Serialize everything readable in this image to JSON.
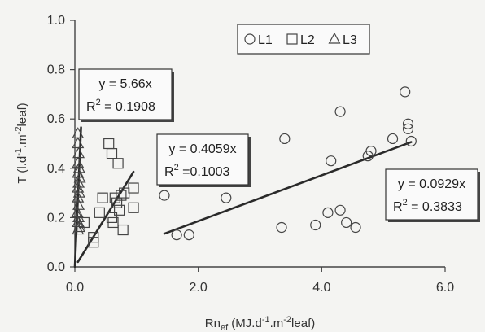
{
  "chart_data": {
    "type": "scatter",
    "xlim": [
      0,
      6
    ],
    "ylim": [
      0,
      1
    ],
    "x_ticks": [
      "0.0",
      "2.0",
      "4.0",
      "6.0"
    ],
    "y_ticks": [
      "0.0",
      "0.2",
      "0.4",
      "0.6",
      "0.8",
      "1.0"
    ],
    "xlabel": {
      "base": "Rn",
      "sub": "ef",
      "pre": " (MJ.d",
      "sup1": "-1",
      "mid": ".m",
      "sup2": "-2",
      "post": "leaf)"
    },
    "ylabel": {
      "pre": "T (l.d",
      "sup1": "-1",
      "mid": ".m",
      "sup2": "-2",
      "post": "leaf)"
    },
    "legend": [
      "L1",
      "L2",
      "L3"
    ],
    "grid": false,
    "series": [
      {
        "name": "L1",
        "marker": "circle",
        "points": [
          [
            1.45,
            0.29
          ],
          [
            1.65,
            0.13
          ],
          [
            1.85,
            0.13
          ],
          [
            2.45,
            0.28
          ],
          [
            3.35,
            0.16
          ],
          [
            3.4,
            0.52
          ],
          [
            3.9,
            0.17
          ],
          [
            4.1,
            0.22
          ],
          [
            4.15,
            0.43
          ],
          [
            4.3,
            0.63
          ],
          [
            4.3,
            0.23
          ],
          [
            4.4,
            0.18
          ],
          [
            4.55,
            0.16
          ],
          [
            4.75,
            0.45
          ],
          [
            4.8,
            0.47
          ],
          [
            5.15,
            0.52
          ],
          [
            5.35,
            0.71
          ],
          [
            5.4,
            0.58
          ],
          [
            5.4,
            0.56
          ],
          [
            5.45,
            0.51
          ]
        ],
        "fit": {
          "label": "y = 0.0929x",
          "r2_label": "R",
          "r2_value": " = 0.3833",
          "slope": 0.0929,
          "x_range": [
            1.45,
            5.45
          ]
        }
      },
      {
        "name": "L2",
        "marker": "square",
        "points": [
          [
            0.15,
            0.18
          ],
          [
            0.3,
            0.12
          ],
          [
            0.3,
            0.1
          ],
          [
            0.4,
            0.22
          ],
          [
            0.45,
            0.28
          ],
          [
            0.55,
            0.5
          ],
          [
            0.6,
            0.46
          ],
          [
            0.6,
            0.2
          ],
          [
            0.62,
            0.18
          ],
          [
            0.65,
            0.28
          ],
          [
            0.68,
            0.26
          ],
          [
            0.7,
            0.42
          ],
          [
            0.72,
            0.23
          ],
          [
            0.75,
            0.29
          ],
          [
            0.78,
            0.15
          ],
          [
            0.8,
            0.3
          ],
          [
            0.95,
            0.32
          ],
          [
            0.95,
            0.24
          ]
        ],
        "fit": {
          "label": "y = 0.4059x",
          "r2_label": "R",
          "r2_value": " =0.1003",
          "slope": 0.4059,
          "x_range": [
            0.05,
            0.95
          ]
        }
      },
      {
        "name": "L3",
        "marker": "triangle",
        "points": [
          [
            0.05,
            0.54
          ],
          [
            0.05,
            0.5
          ],
          [
            0.06,
            0.46
          ],
          [
            0.05,
            0.42
          ],
          [
            0.07,
            0.4
          ],
          [
            0.05,
            0.38
          ],
          [
            0.08,
            0.36
          ],
          [
            0.06,
            0.34
          ],
          [
            0.05,
            0.32
          ],
          [
            0.07,
            0.3
          ],
          [
            0.05,
            0.28
          ],
          [
            0.06,
            0.25
          ],
          [
            0.04,
            0.22
          ],
          [
            0.06,
            0.2
          ],
          [
            0.05,
            0.18
          ],
          [
            0.07,
            0.16
          ],
          [
            0.05,
            0.15
          ],
          [
            0.08,
            0.17
          ]
        ],
        "fit": {
          "label": "y = 5.66x",
          "r2_label": "R",
          "r2_value": " = 0.1908",
          "slope": 5.66,
          "x_range": [
            0.0,
            0.1
          ]
        }
      }
    ]
  }
}
